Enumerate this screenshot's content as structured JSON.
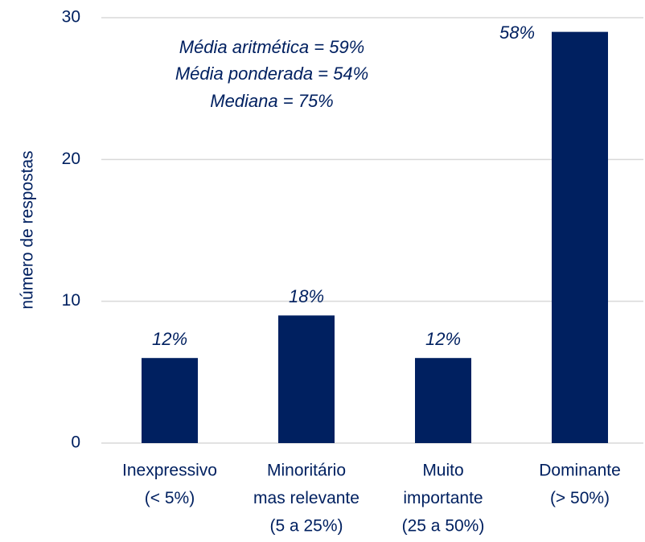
{
  "chart_data": {
    "type": "bar",
    "y_axis_label": "número de respostas",
    "categories": [
      [
        "Inexpressivo",
        "(<  5%)"
      ],
      [
        "Minoritário",
        "mas relevante",
        "(5 a 25%)"
      ],
      [
        "Muito",
        "importante",
        "(25 a 50%)"
      ],
      [
        "Dominante",
        "(> 50%)"
      ]
    ],
    "values": [
      6,
      9,
      6,
      29
    ],
    "share_labels": [
      "12%",
      "18%",
      "12%",
      "58%"
    ],
    "annotations": [
      "Média aritmética = 59%",
      "Média ponderada = 54%",
      "Mediana = 75%"
    ],
    "color": "#002060",
    "ylim": [
      0,
      30
    ],
    "yticks": [
      0,
      10,
      20,
      30
    ],
    "grid": true
  }
}
